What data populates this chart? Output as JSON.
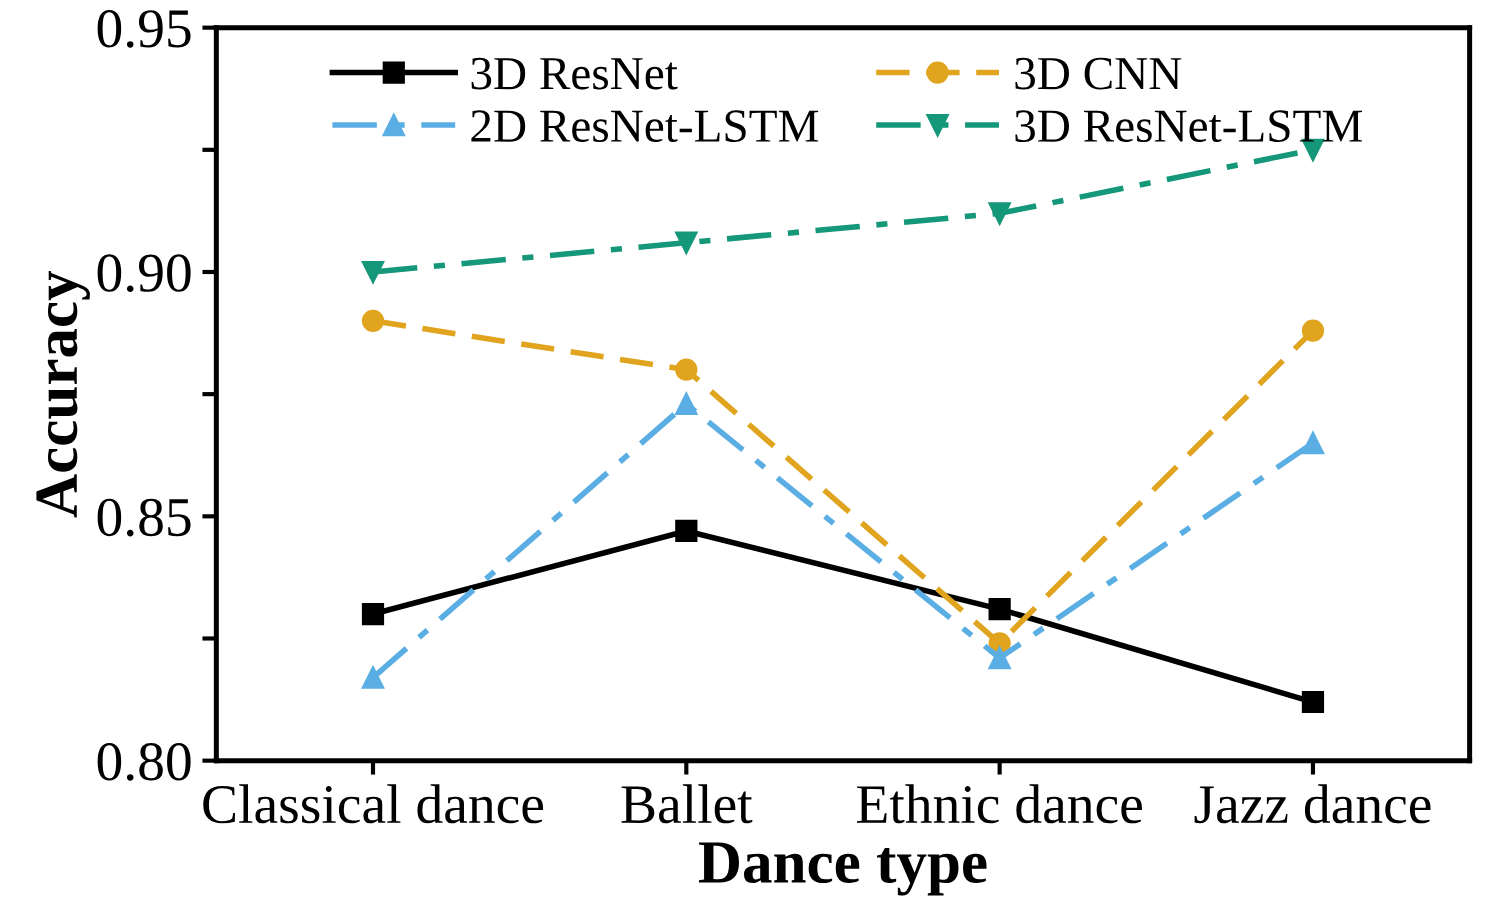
{
  "chart_data": {
    "type": "line",
    "xlabel": "Dance type",
    "ylabel": "Accuracy",
    "categories": [
      "Classical dance",
      "Ballet",
      "Ethnic dance",
      "Jazz dance"
    ],
    "series": [
      {
        "name": "3D ResNet",
        "color": "#000000",
        "marker": "square",
        "line_style": "solid",
        "values": [
          0.83,
          0.847,
          0.831,
          0.812
        ]
      },
      {
        "name": "3D CNN",
        "color": "#e0a41e",
        "marker": "circle",
        "line_style": "dashed",
        "values": [
          0.89,
          0.88,
          0.824,
          0.888
        ]
      },
      {
        "name": "2D ResNet-LSTM",
        "color": "#5aaee3",
        "marker": "triangle",
        "line_style": "dashdot",
        "values": [
          0.817,
          0.873,
          0.821,
          0.865
        ]
      },
      {
        "name": "3D ResNet-LSTM",
        "color": "#15977a",
        "marker": "triangle_down",
        "line_style": "dashdot",
        "values": [
          0.9,
          0.906,
          0.912,
          0.925
        ]
      }
    ],
    "ylim": [
      0.8,
      0.95
    ],
    "yticks": [
      {
        "value": 0.8,
        "label": "0.80"
      },
      {
        "value": 0.825,
        "label": null
      },
      {
        "value": 0.85,
        "label": "0.85"
      },
      {
        "value": 0.875,
        "label": null
      },
      {
        "value": 0.9,
        "label": "0.90"
      },
      {
        "value": 0.925,
        "label": null
      },
      {
        "value": 0.95,
        "label": "0.95"
      }
    ],
    "grid": false,
    "legend": "top left"
  }
}
